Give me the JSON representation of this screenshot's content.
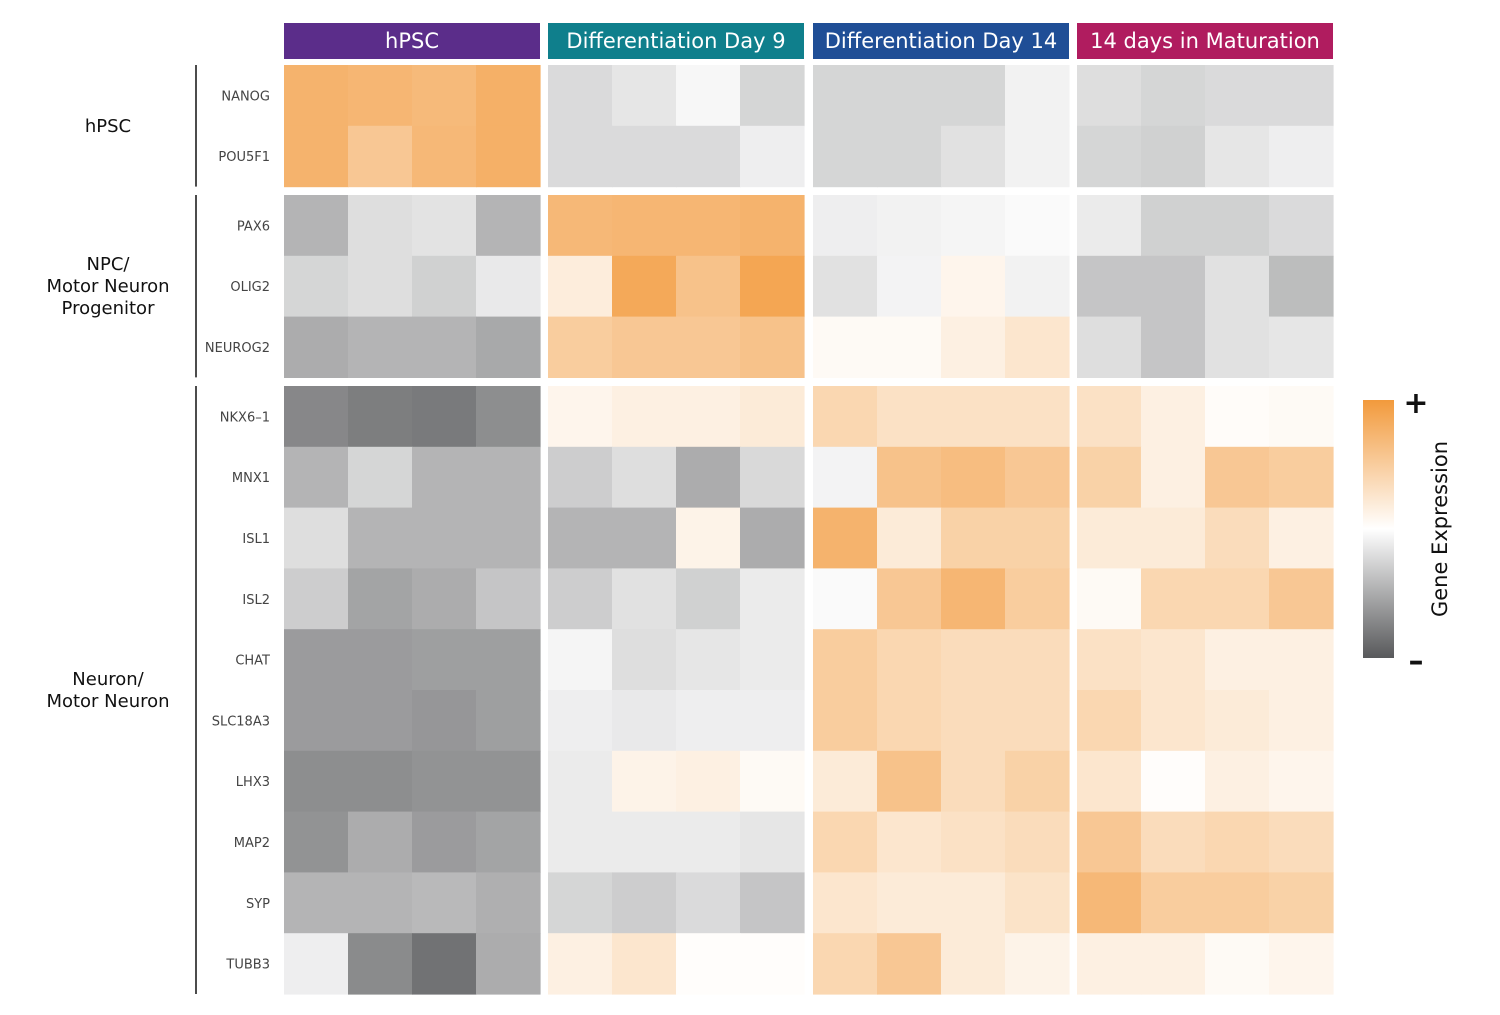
{
  "chart_data": {
    "type": "heatmap",
    "conditions": [
      {
        "label": "hPSC",
        "color": "#5b2d8a"
      },
      {
        "label": "Differentiation Day 9",
        "color": "#0f7f8c"
      },
      {
        "label": "Differentiation Day 14",
        "color": "#1f4e96"
      },
      {
        "label": "14 days in Maturation",
        "color": "#b01c5f"
      }
    ],
    "replicates_per_condition": 4,
    "groups": [
      {
        "label_lines": [
          "hPSC"
        ],
        "genes": [
          "NANOG",
          "POU5F1"
        ]
      },
      {
        "label_lines": [
          "NPC/",
          "Motor Neuron",
          "Progenitor"
        ],
        "genes": [
          "PAX6",
          "OLIG2",
          "NEUROG2"
        ]
      },
      {
        "label_lines": [
          "Neuron/",
          "Motor Neuron"
        ],
        "genes": [
          "NKX6–1",
          "MNX1",
          "ISL1",
          "ISL2",
          "CHAT",
          "SLC18A3",
          "LHX3",
          "MAP2",
          "SYP",
          "TUBB3"
        ]
      }
    ],
    "scale": {
      "min": -1,
      "max": 1,
      "low_color": "#58595b",
      "mid_color": "#ffffff",
      "high_color": "#f29a3c"
    },
    "values": {
      "NANOG": [
        0.75,
        0.72,
        0.68,
        0.78,
        -0.22,
        -0.15,
        -0.05,
        -0.25,
        -0.25,
        -0.25,
        -0.25,
        -0.08,
        -0.2,
        -0.25,
        -0.22,
        -0.22
      ],
      "POU5F1": [
        0.75,
        0.55,
        0.7,
        0.78,
        -0.22,
        -0.22,
        -0.22,
        -0.1,
        -0.25,
        -0.25,
        -0.18,
        -0.08,
        -0.25,
        -0.28,
        -0.15,
        -0.1
      ],
      "PAX6": [
        -0.45,
        -0.2,
        -0.17,
        -0.45,
        0.7,
        0.72,
        0.72,
        0.75,
        -0.1,
        -0.08,
        -0.06,
        -0.03,
        -0.12,
        -0.28,
        -0.28,
        -0.22
      ],
      "OLIG2": [
        -0.25,
        -0.2,
        -0.28,
        -0.13,
        0.18,
        0.85,
        0.6,
        0.88,
        -0.18,
        -0.07,
        0.1,
        -0.08,
        -0.35,
        -0.35,
        -0.18,
        -0.4
      ],
      "NEUROG2": [
        -0.5,
        -0.45,
        -0.45,
        -0.52,
        0.5,
        0.55,
        0.55,
        0.6,
        0.05,
        0.05,
        0.15,
        0.25,
        -0.2,
        -0.35,
        -0.18,
        -0.15
      ],
      "NKX6–1": [
        -0.72,
        -0.78,
        -0.8,
        -0.68,
        0.1,
        0.15,
        0.15,
        0.2,
        0.4,
        0.3,
        0.3,
        0.3,
        0.3,
        0.15,
        0.03,
        0.05
      ],
      "MNX1": [
        -0.45,
        -0.25,
        -0.45,
        -0.45,
        -0.3,
        -0.2,
        -0.5,
        -0.23,
        -0.07,
        0.6,
        0.65,
        0.55,
        0.45,
        0.15,
        0.55,
        0.5
      ],
      "ISL1": [
        -0.2,
        -0.45,
        -0.45,
        -0.45,
        -0.45,
        -0.45,
        0.12,
        -0.5,
        0.75,
        0.2,
        0.45,
        0.45,
        0.2,
        0.2,
        0.35,
        0.15
      ],
      "ISL2": [
        -0.3,
        -0.55,
        -0.5,
        -0.35,
        -0.3,
        -0.18,
        -0.28,
        -0.12,
        -0.03,
        0.55,
        0.72,
        0.5,
        0.05,
        0.4,
        0.4,
        0.55
      ],
      "CHAT": [
        -0.6,
        -0.6,
        -0.58,
        -0.58,
        -0.06,
        -0.2,
        -0.15,
        -0.12,
        0.5,
        0.4,
        0.35,
        0.35,
        0.3,
        0.25,
        0.15,
        0.15
      ],
      "SLC18A3": [
        -0.6,
        -0.6,
        -0.63,
        -0.58,
        -0.1,
        -0.13,
        -0.1,
        -0.1,
        0.5,
        0.4,
        0.35,
        0.35,
        0.4,
        0.25,
        0.2,
        0.15
      ],
      "LHX3": [
        -0.68,
        -0.68,
        -0.65,
        -0.65,
        -0.12,
        0.12,
        0.15,
        0.05,
        0.2,
        0.6,
        0.35,
        0.45,
        0.25,
        0.02,
        0.15,
        0.1
      ],
      "MAP2": [
        -0.65,
        -0.5,
        -0.6,
        -0.55,
        -0.12,
        -0.12,
        -0.12,
        -0.15,
        0.4,
        0.25,
        0.3,
        0.35,
        0.55,
        0.35,
        0.4,
        0.35
      ],
      "SYP": [
        -0.45,
        -0.45,
        -0.42,
        -0.48,
        -0.25,
        -0.3,
        -0.22,
        -0.35,
        0.25,
        0.2,
        0.2,
        0.28,
        0.7,
        0.5,
        0.5,
        0.45
      ],
      "TUBB3": [
        -0.1,
        -0.7,
        -0.85,
        -0.5,
        0.15,
        0.25,
        0.02,
        0.02,
        0.4,
        0.55,
        0.2,
        0.12,
        0.15,
        0.15,
        0.05,
        0.1
      ]
    },
    "legend": {
      "label": "Gene Expression",
      "plus": "+",
      "minus": "–",
      "position": "right"
    }
  }
}
